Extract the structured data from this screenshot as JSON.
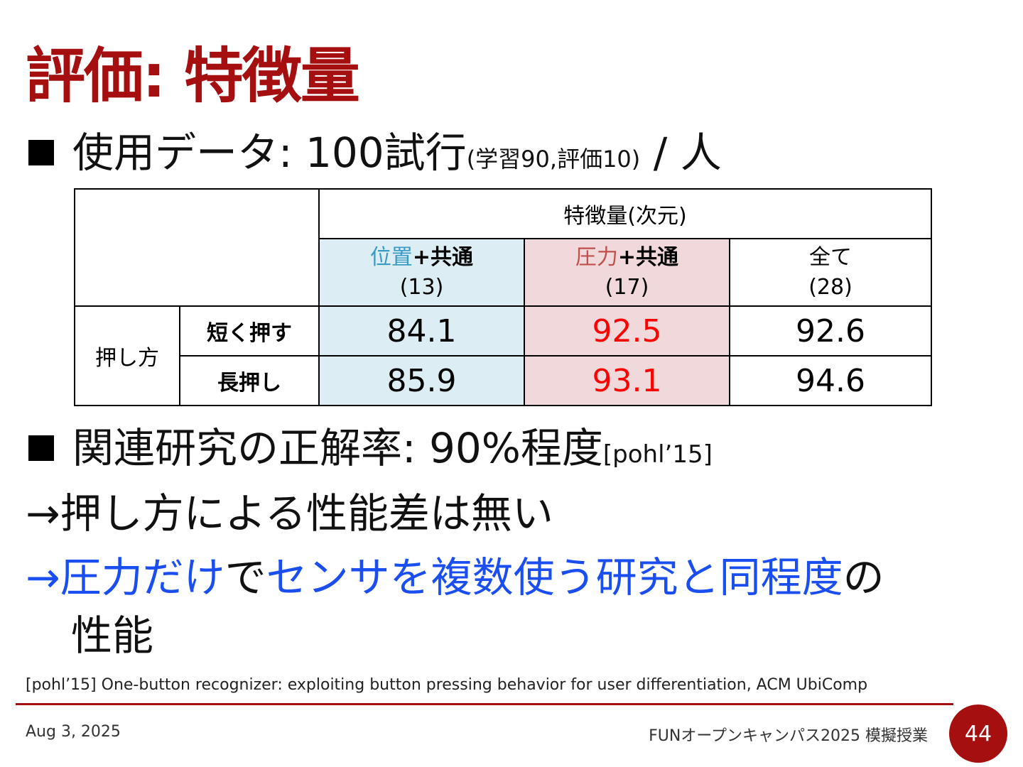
{
  "title": "評価: 特徴量",
  "bullets": {
    "b1": {
      "main": "使用データ: 100試行",
      "sub": "(学習90,評価10)",
      "tail": " / 人"
    },
    "b2": {
      "main": "関連研究の正解率: 90%程度",
      "ref": "[pohl’15]"
    }
  },
  "conclusions": {
    "c1": "→押し方による性能差は無い",
    "c2": {
      "p1": "→圧力だけ",
      "p2": "で",
      "p3": "センサを複数使う研究と同程度",
      "p4": "の"
    },
    "c3": "性能"
  },
  "table": {
    "header": "特徴量(次元)",
    "columns": [
      {
        "label_colored": "位置",
        "label_rest": "+共通",
        "dim": "(13)"
      },
      {
        "label_colored": "圧力",
        "label_rest": "+共通",
        "dim": "(17)"
      },
      {
        "label": "全て",
        "dim": "(28)"
      }
    ],
    "row_group": "押し方",
    "rows": [
      {
        "label": "短く押す",
        "values": [
          "84.1",
          "92.5",
          "92.6"
        ]
      },
      {
        "label": "長押し",
        "values": [
          "85.9",
          "93.1",
          "94.6"
        ]
      }
    ]
  },
  "footnote": "[pohl’15] One-button recognizer: exploiting button pressing behavior for user differentiation, ACM UbiComp",
  "footer": {
    "date": "Aug 3, 2025",
    "event": "FUNオープンキャンパス2025 模擬授業",
    "page": "44"
  },
  "colors": {
    "title": "#a50f0f",
    "highlight_blue": "#1a4ef0",
    "cell_blue": "#dcedf3",
    "cell_red": "#f1d8da",
    "value_red": "#ff0000"
  }
}
